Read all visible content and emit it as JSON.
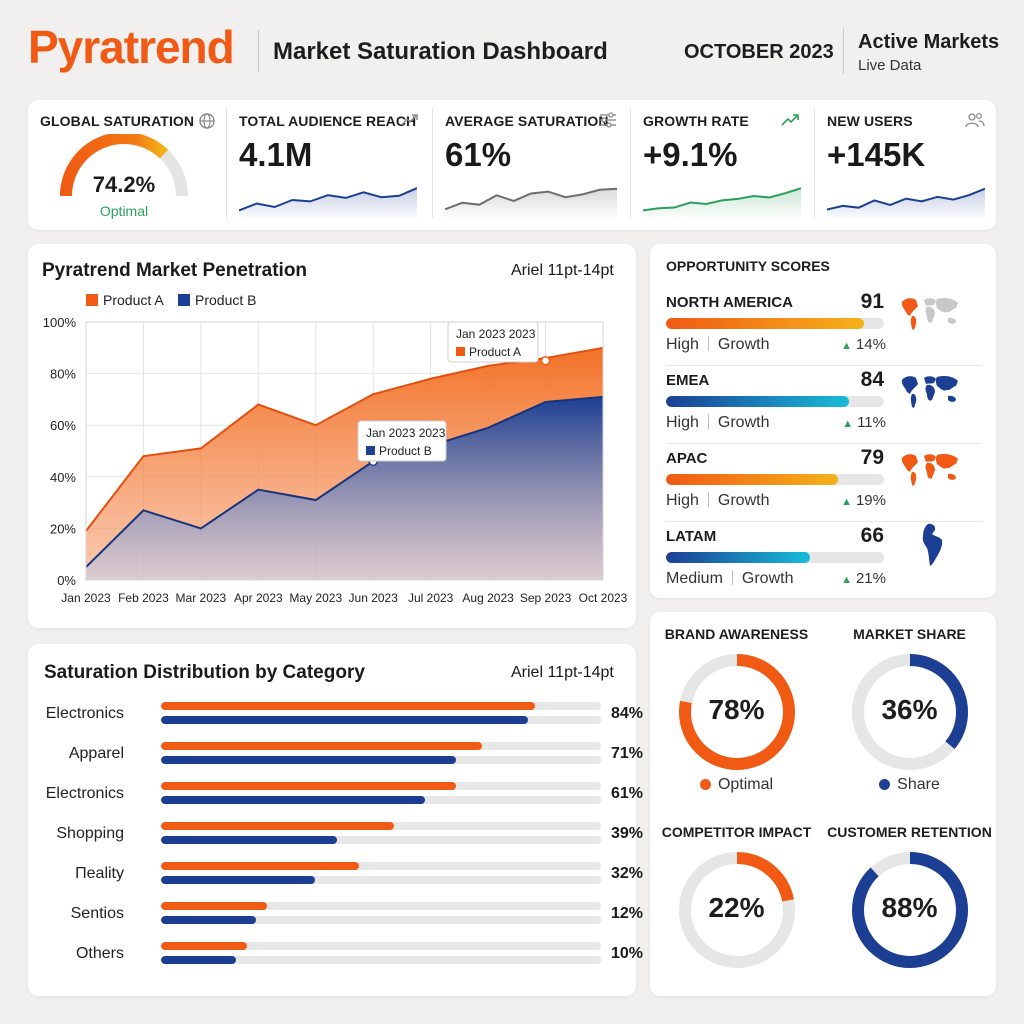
{
  "header": {
    "brand": "Pyratrend",
    "title": "Market Saturation Dashboard",
    "month": "OCTOBER 2023",
    "status_title": "Active Markets",
    "status_sub": "Live Data"
  },
  "colors": {
    "orange": "#f05a14",
    "blue": "#1c3f94",
    "green": "#2aa05a",
    "amber": "#f5b21a",
    "cyan": "#18bcd8"
  },
  "kpis": [
    {
      "label": "GLOBAL SATURATION",
      "icon": "globe-icon",
      "value": "74.2%",
      "status": "Optimal",
      "gauge_fraction": 0.742
    },
    {
      "label": "TOTAL AUDIENCE REACH",
      "icon": "trend-up-icon",
      "value": "4.1M",
      "spark": [
        2,
        3,
        2.5,
        3.5,
        3.3,
        4.2,
        3.8,
        4.6,
        3.9,
        4.1,
        5.2
      ]
    },
    {
      "label": "AVERAGE SATURATION",
      "icon": "sliders-icon",
      "value": "61%",
      "spark": [
        2.5,
        3.2,
        3.0,
        4.0,
        3.4,
        4.2,
        4.4,
        3.8,
        4.1,
        4.6,
        4.7
      ]
    },
    {
      "label": "GROWTH RATE",
      "icon": "trend-up-icon",
      "value": "+9.1%",
      "spark": [
        1.5,
        1.8,
        1.9,
        2.6,
        2.4,
        2.9,
        3.1,
        3.5,
        3.3,
        3.9,
        4.6
      ]
    },
    {
      "label": "NEW USERS",
      "icon": "users-icon",
      "value": "+145K",
      "spark": [
        2.0,
        2.4,
        2.2,
        3.0,
        2.5,
        3.2,
        2.9,
        3.4,
        3.1,
        3.6,
        4.3
      ]
    }
  ],
  "penetration": {
    "title": "Pyratrend Market Penetration",
    "font_note": "Ariel 11pt-14pt",
    "tooltip_a": {
      "date": "Jan 2023 2023",
      "label": "Product A"
    },
    "tooltip_b": {
      "date": "Jan 2023 2023",
      "label": "Product B"
    }
  },
  "chart_data": {
    "type": "area",
    "x": [
      "Jan 2023",
      "Feb 2023",
      "Mar 2023",
      "Apr 2023",
      "May 2023",
      "Jun 2023",
      "Jul 2023",
      "Aug 2023",
      "Sep 2023",
      "Oct 2023"
    ],
    "series": [
      {
        "name": "Product A",
        "values": [
          19,
          48,
          51,
          68,
          60,
          72,
          78,
          83,
          86,
          90
        ]
      },
      {
        "name": "Product B",
        "values": [
          5,
          27,
          20,
          35,
          31,
          46,
          52,
          59,
          69,
          71
        ]
      }
    ],
    "ylim": [
      0,
      100
    ],
    "yticks": [
      "0%",
      "20%",
      "40%",
      "60%",
      "80%",
      "100%"
    ],
    "grid": true,
    "legend": "top-left"
  },
  "opportunity": {
    "title": "OPPORTUNITY SCORES",
    "regions": [
      {
        "name": "NORTH AMERICA",
        "score": "91",
        "level": "High",
        "type": "Growth",
        "delta": "14%",
        "fill_fraction": 0.91,
        "gradient": [
          "#f05a14",
          "#f5b21a"
        ],
        "map_color": "#f05a14"
      },
      {
        "name": "EMEA",
        "score": "84",
        "level": "High",
        "type": "Growth",
        "delta": "11%",
        "fill_fraction": 0.84,
        "gradient": [
          "#1c3f94",
          "#18bcd8"
        ],
        "map_color": "#1c3f94"
      },
      {
        "name": "APAC",
        "score": "79",
        "level": "High",
        "type": "Growth",
        "delta": "19%",
        "fill_fraction": 0.79,
        "gradient": [
          "#f05a14",
          "#f5b21a"
        ],
        "map_color": "#f05a14"
      },
      {
        "name": "LATAM",
        "score": "66",
        "level": "Medium",
        "type": "Growth",
        "delta": "21%",
        "fill_fraction": 0.66,
        "gradient": [
          "#1c3f94",
          "#18bcd8"
        ],
        "map_color": "#1c3f94"
      }
    ]
  },
  "distribution": {
    "title": "Saturation Distribution by Category",
    "font_note": "Ariel 11pt-14pt",
    "rows": [
      {
        "label": "Electronics",
        "pct": "84%",
        "a": 0.85,
        "b": 0.835
      },
      {
        "label": "Apparel",
        "pct": "71%",
        "a": 0.73,
        "b": 0.67
      },
      {
        "label": "Electronics",
        "pct": "61%",
        "a": 0.67,
        "b": 0.6
      },
      {
        "label": "Shopping",
        "pct": "39%",
        "a": 0.53,
        "b": 0.4
      },
      {
        "label": "Πeality",
        "pct": "32%",
        "a": 0.45,
        "b": 0.35
      },
      {
        "label": "Sentios",
        "pct": "12%",
        "a": 0.24,
        "b": 0.215
      },
      {
        "label": "Others",
        "pct": "10%",
        "a": 0.195,
        "b": 0.17
      }
    ]
  },
  "donuts": [
    {
      "title": "BRAND AWARENESS",
      "value": "78%",
      "fraction": 0.78,
      "color": "#f05a14",
      "legend": "Optimal"
    },
    {
      "title": "MARKET SHARE",
      "value": "36%",
      "fraction": 0.36,
      "color": "#1c3f94",
      "legend": "Share"
    },
    {
      "title": "COMPETITOR IMPACT",
      "value": "22%",
      "fraction": 0.22,
      "color": "#f05a14"
    },
    {
      "title": "CUSTOMER RETENTION",
      "value": "88%",
      "fraction": 0.88,
      "color": "#1c3f94"
    }
  ]
}
